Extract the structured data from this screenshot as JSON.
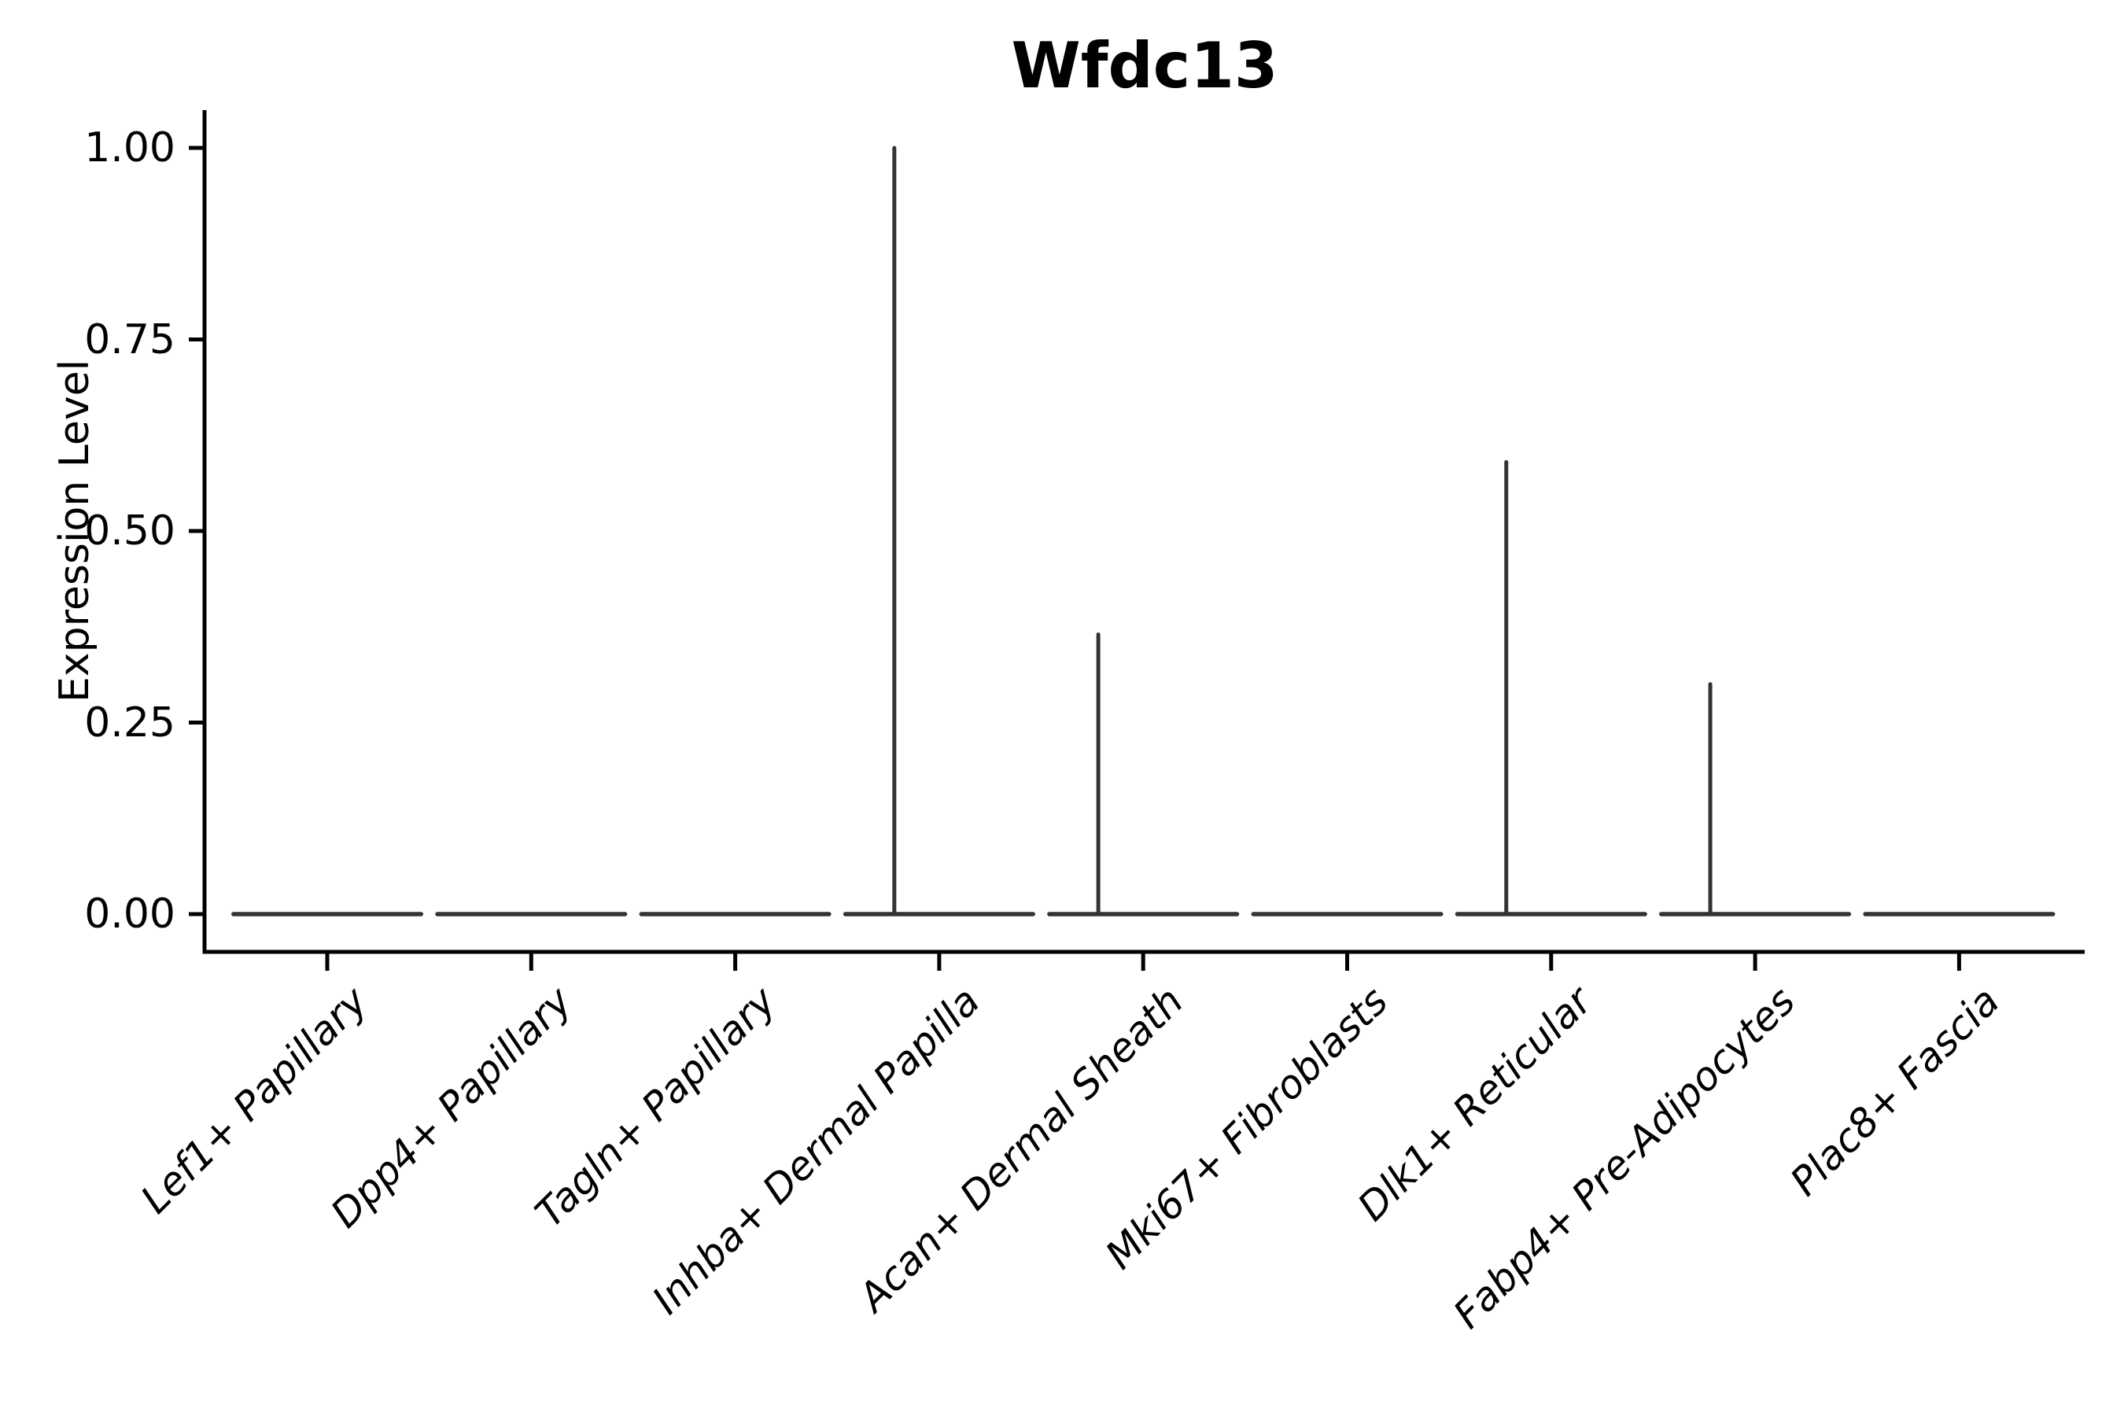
{
  "title": "Wfdc13",
  "y_axis": {
    "label": "Expression Level",
    "ticks": [
      "0.00",
      "0.25",
      "0.50",
      "0.75",
      "1.00"
    ],
    "tick_values": [
      0,
      0.25,
      0.5,
      0.75,
      1.0
    ]
  },
  "chart_data": {
    "type": "violin",
    "title": "Wfdc13",
    "xlabel": "",
    "ylabel": "Expression Level",
    "ylim": [
      0,
      1.0
    ],
    "yticks": [
      0,
      0.25,
      0.5,
      0.75,
      1.0
    ],
    "ytick_labels": [
      "0.00",
      "0.25",
      "0.50",
      "0.75",
      "1.00"
    ],
    "grid": false,
    "legend": "none",
    "categories": [
      "Lef1+ Papillary",
      "Dpp4+ Papillary",
      "Tagln+ Papillary",
      "Inhba+ Dermal Papilla",
      "Acan+ Dermal Sheath",
      "Mki67+ Fibroblasts",
      "Dlk1+ Reticular",
      "Fabp4+ Pre-Adipocytes",
      "Plac8+ Fascia"
    ],
    "series": [
      {
        "name": "spike_peak_expression",
        "description": "Each violin collapses to a flat bar at 0 expression; values give the top of the thin density spike rising from 0 (0 = no spike).",
        "values": [
          0,
          0,
          0,
          1.0,
          0.365,
          0,
          0.59,
          0.3,
          0
        ]
      }
    ],
    "style": {
      "violin_color": "#333333",
      "axis_color": "#000000",
      "body_halfwidth_fraction": 0.46,
      "spike_offset_fraction": -0.22,
      "x_label_rotation_deg": -45,
      "x_label_style": "italic"
    }
  }
}
